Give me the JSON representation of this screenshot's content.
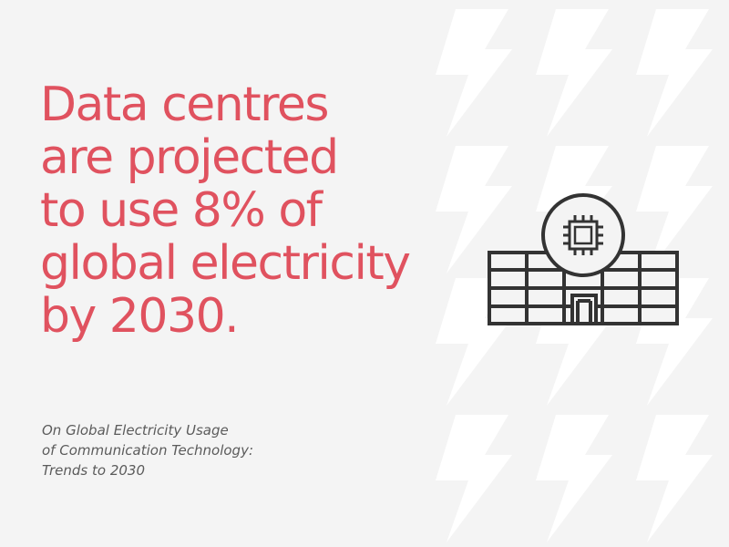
{
  "headline": {
    "lines": [
      "Data centres",
      "are projected",
      "to use 8% of",
      "global electricity",
      "by 2030."
    ]
  },
  "source": {
    "lines": [
      "On Global Electricity Usage",
      "of Communication Technology:",
      "Trends to 2030"
    ]
  },
  "illustration": {
    "icon": "data-centre-building-icon",
    "chip_icon": "microchip-icon",
    "background_pattern": "lightning-bolt-icon"
  },
  "colors": {
    "background": "#f4f4f4",
    "headline": "#e0525f",
    "source_text": "#5b5b5b",
    "icon_stroke": "#333333",
    "bolt_pattern": "#ffffff"
  }
}
